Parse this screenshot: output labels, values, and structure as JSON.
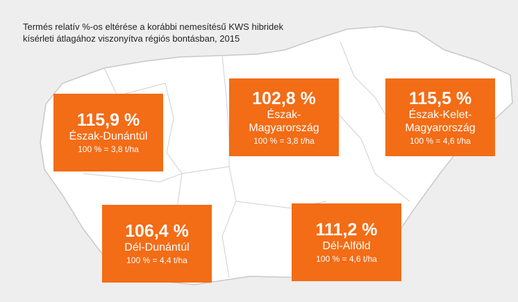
{
  "title_lines": [
    "Termés relatív %-os eltérése a korábbi nemesítésű KWS hibridek",
    "kísérleti átlagához viszonyítva régiós bontásban, 2015"
  ],
  "regions": [
    {
      "percent": "115,9 %",
      "name": "Észak-Dunántúl",
      "baseline": "100 % = 3,8 t/ha"
    },
    {
      "percent": "102,8 %",
      "name": "Észak-Magyarország",
      "baseline": "100 % = 3,8 t/ha"
    },
    {
      "percent": "115,5 %",
      "name": "Észak-Kelet-Magyarország",
      "baseline": "100 % = 4,6 t/ha"
    },
    {
      "percent": "106,4 %",
      "name": "Dél-Dunántúl",
      "baseline": "100 % = 4,4 t/ha"
    },
    {
      "percent": "111,2 %",
      "name": "Dél-Alföld",
      "baseline": "100 % = 4,6 t/ha"
    }
  ]
}
